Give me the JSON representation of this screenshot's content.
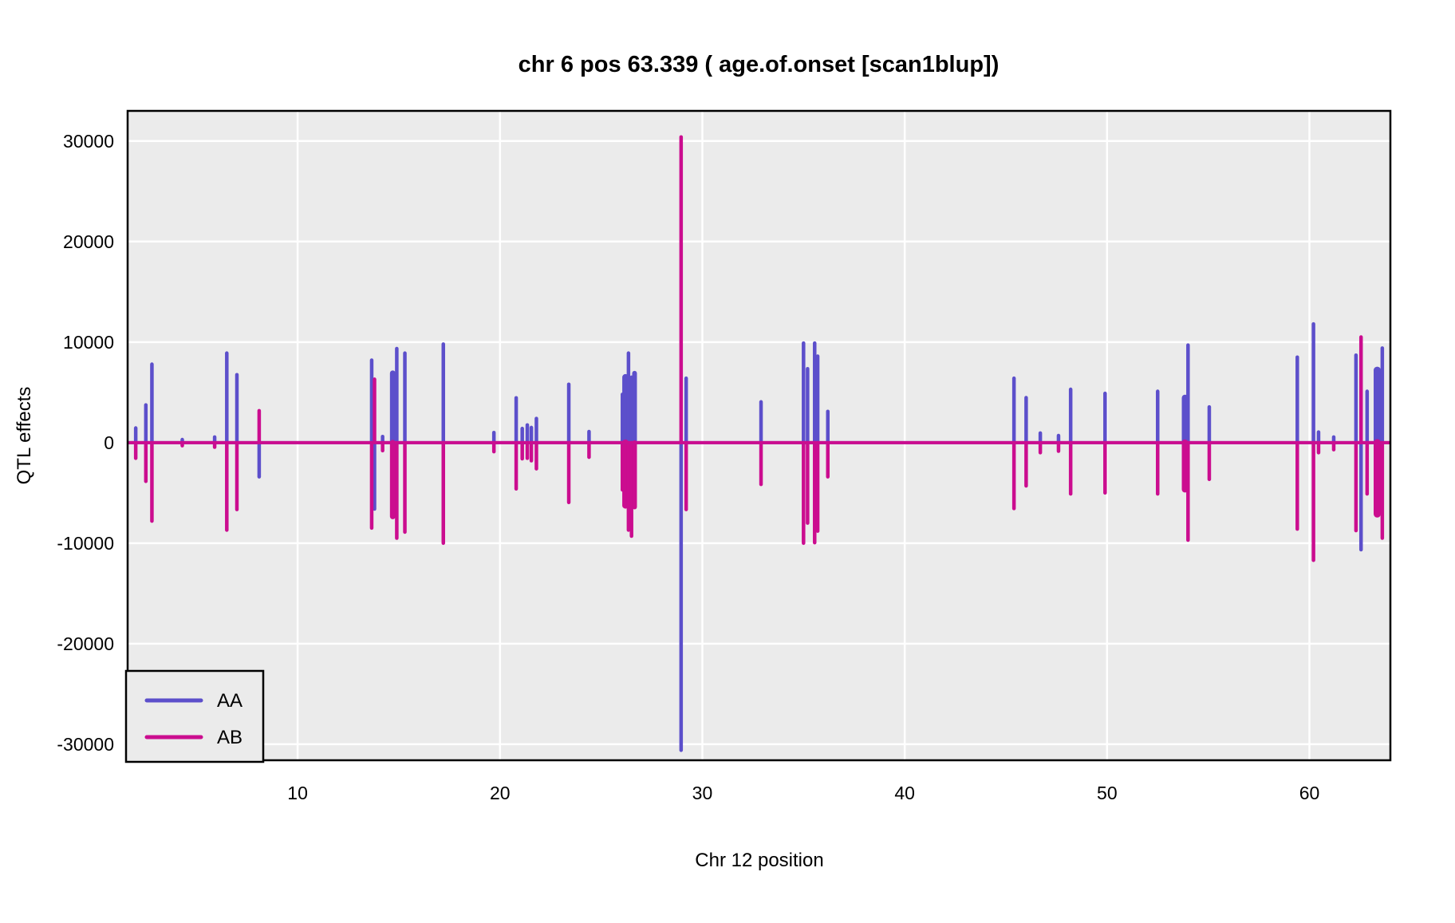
{
  "page": {
    "background": "#FFFFFF"
  },
  "chart_data": {
    "type": "line",
    "variant": "QTL effect scan: paired vertical spikes from a zero baseline",
    "title": "chr 6 pos 63.339 ( age.of.onset  [scan1blup])",
    "xlabel": "Chr 12 position",
    "ylabel": "QTL effects",
    "xlim": [
      1.6,
      64.0
    ],
    "ylim": [
      -31600,
      33000
    ],
    "x_ticks": [
      10,
      20,
      30,
      40,
      50,
      60
    ],
    "y_ticks": [
      30000,
      20000,
      10000,
      0,
      -10000,
      -20000,
      -30000
    ],
    "grid": {
      "major": true,
      "minor": false,
      "grid_color": "#FFFFFF",
      "panel_bg": "#EBEBEB",
      "panel_border": "#000000",
      "outer_bg": "#FFFFFF"
    },
    "legend": {
      "position": "bottom-left-inside-panel"
    },
    "series": [
      {
        "name": "AA",
        "color": "#5C4FCB"
      },
      {
        "name": "AB",
        "color": "#CB0D8F"
      }
    ],
    "baseline_value": 0,
    "spikes": [
      {
        "pos": 2.0,
        "AA": 1450,
        "AB": -1550
      },
      {
        "pos": 2.5,
        "AA": 3750,
        "AB": -3850
      },
      {
        "pos": 2.8,
        "AA": 7800,
        "AB": -7800
      },
      {
        "pos": 4.3,
        "AA": 300,
        "AB": -300
      },
      {
        "pos": 5.9,
        "AA": 550,
        "AB": -450
      },
      {
        "pos": 6.5,
        "AA": 8900,
        "AB": -8700
      },
      {
        "pos": 7.0,
        "AA": 6750,
        "AB": -6650
      },
      {
        "pos": 8.1,
        "AA": -3400,
        "AB": 3170
      },
      {
        "pos": 13.66,
        "AA": 8200,
        "AB": -8500
      },
      {
        "pos": 13.8,
        "AA": -6600,
        "AB": 6300
      },
      {
        "pos": 14.2,
        "AA": 600,
        "AB": -800
      },
      {
        "pos": 14.7,
        "AA": 6900,
        "AB": -7350,
        "w": 7
      },
      {
        "pos": 14.9,
        "AA": 9350,
        "AB": -9500
      },
      {
        "pos": 15.3,
        "AA": 8900,
        "AB": -8900
      },
      {
        "pos": 17.2,
        "AA": 9800,
        "AB": -10000
      },
      {
        "pos": 19.7,
        "AA": 1000,
        "AB": -900
      },
      {
        "pos": 20.8,
        "AA": 4450,
        "AB": -4600
      },
      {
        "pos": 21.1,
        "AA": 1400,
        "AB": -1600
      },
      {
        "pos": 21.35,
        "AA": 1750,
        "AB": -1550
      },
      {
        "pos": 21.55,
        "AA": 1500,
        "AB": -1800
      },
      {
        "pos": 21.8,
        "AA": 2400,
        "AB": -2600
      },
      {
        "pos": 23.4,
        "AA": 5800,
        "AB": -5950
      },
      {
        "pos": 24.4,
        "AA": 1100,
        "AB": -1450
      },
      {
        "pos": 26.05,
        "AA": 4800,
        "AB": -4700
      },
      {
        "pos": 26.2,
        "AA": 6500,
        "AB": -6250,
        "w": 8
      },
      {
        "pos": 26.35,
        "AA": 8900,
        "AB": -8700
      },
      {
        "pos": 26.5,
        "AA": 6500,
        "AB": -9300
      },
      {
        "pos": 26.65,
        "AA": 6900,
        "AB": -6400,
        "w": 6
      },
      {
        "pos": 28.95,
        "AA": -30600,
        "AB": 30400
      },
      {
        "pos": 29.2,
        "AA": 6400,
        "AB": -6650
      },
      {
        "pos": 32.9,
        "AA": 4050,
        "AB": -4150
      },
      {
        "pos": 35.0,
        "AA": 9900,
        "AB": -10000
      },
      {
        "pos": 35.2,
        "AA": 7350,
        "AB": -8000
      },
      {
        "pos": 35.55,
        "AA": 9900,
        "AB": -9950
      },
      {
        "pos": 35.7,
        "AA": 8600,
        "AB": -8800
      },
      {
        "pos": 36.2,
        "AA": 3100,
        "AB": -3400
      },
      {
        "pos": 45.4,
        "AA": 6400,
        "AB": -6550
      },
      {
        "pos": 46.0,
        "AA": 4470,
        "AB": -4300
      },
      {
        "pos": 46.7,
        "AA": 950,
        "AB": -1000
      },
      {
        "pos": 47.6,
        "AA": 700,
        "AB": -850
      },
      {
        "pos": 48.2,
        "AA": 5300,
        "AB": -5100
      },
      {
        "pos": 49.9,
        "AA": 4900,
        "AB": -5000
      },
      {
        "pos": 52.5,
        "AA": 5100,
        "AB": -5100
      },
      {
        "pos": 53.85,
        "AA": 4450,
        "AB": -4650,
        "w": 8
      },
      {
        "pos": 54.0,
        "AA": 9700,
        "AB": -9700
      },
      {
        "pos": 55.05,
        "AA": 3550,
        "AB": -3650
      },
      {
        "pos": 59.4,
        "AA": 8500,
        "AB": -8600
      },
      {
        "pos": 60.2,
        "AA": 11800,
        "AB": -11700
      },
      {
        "pos": 60.45,
        "AA": 1050,
        "AB": -1000
      },
      {
        "pos": 61.2,
        "AA": 550,
        "AB": -700
      },
      {
        "pos": 62.3,
        "AA": 8700,
        "AB": -8750
      },
      {
        "pos": 62.55,
        "AA": -10650,
        "AB": 10500
      },
      {
        "pos": 62.85,
        "AA": 5100,
        "AB": -5100
      },
      {
        "pos": 63.35,
        "AA": 7200,
        "AB": -7100,
        "w": 9
      },
      {
        "pos": 63.6,
        "AA": 9400,
        "AB": -9500
      }
    ]
  }
}
